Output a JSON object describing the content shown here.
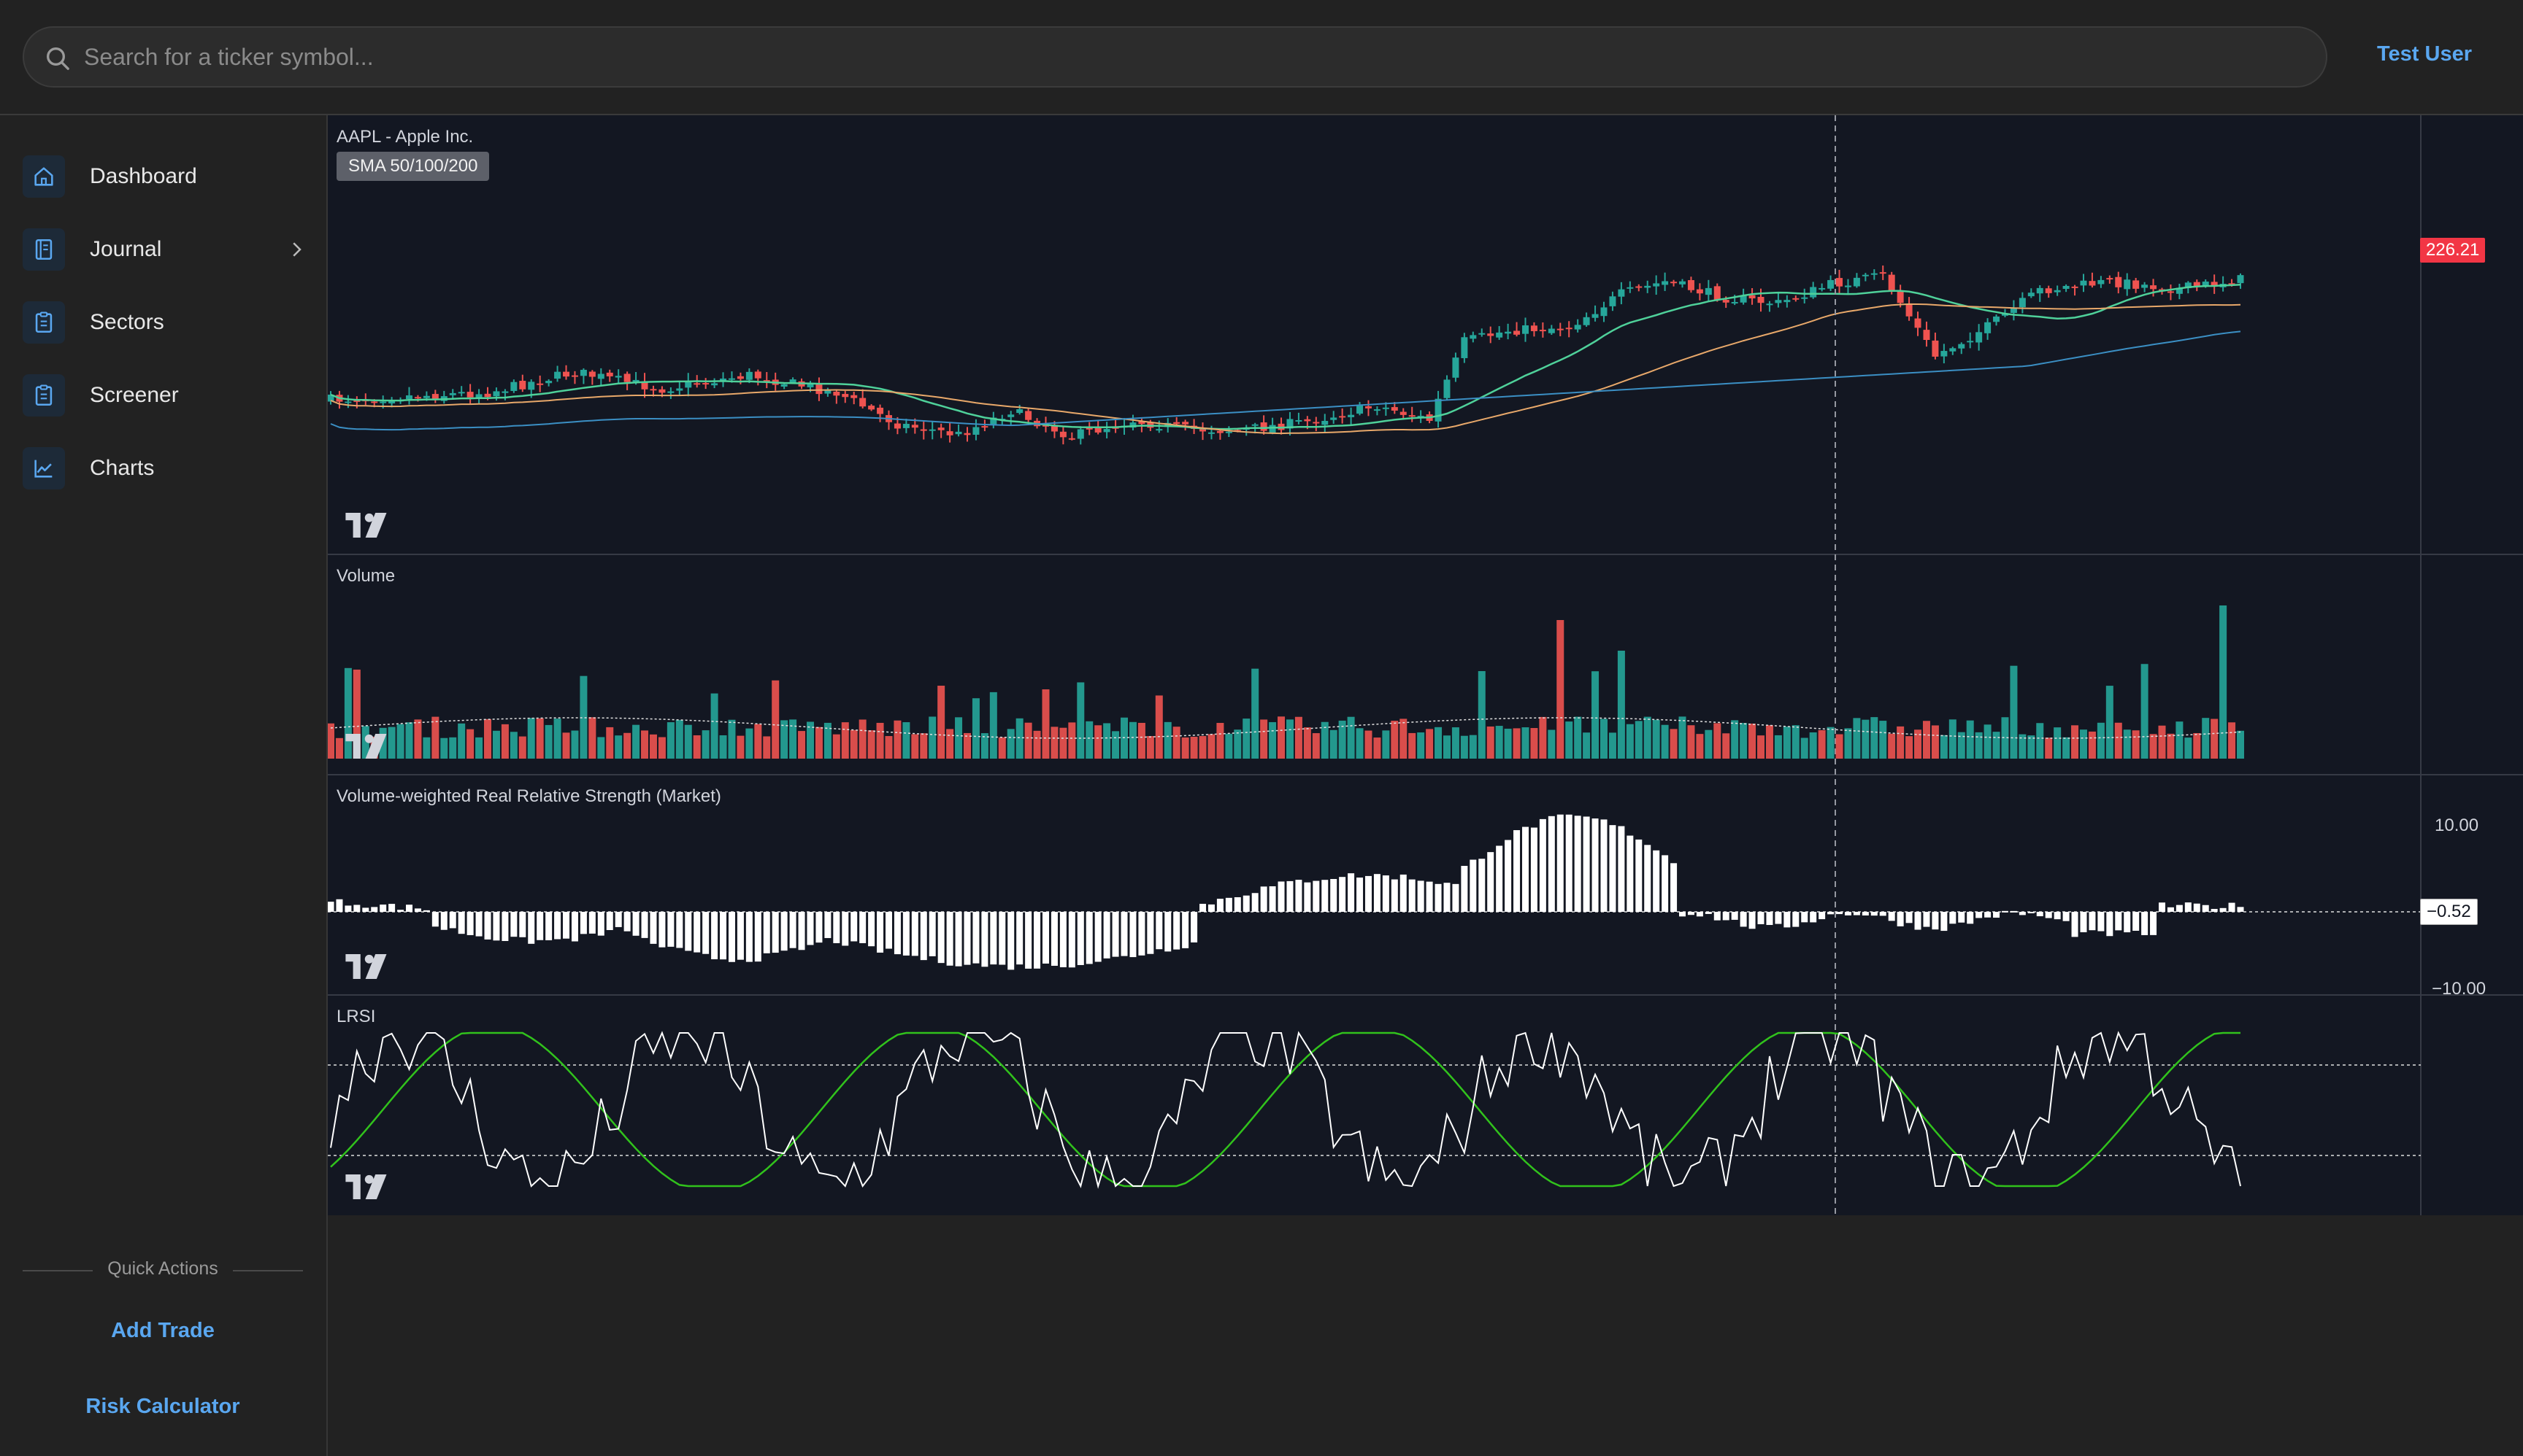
{
  "header": {
    "search_placeholder": "Search for a ticker symbol...",
    "user_name": "Test User"
  },
  "sidebar": {
    "items": [
      {
        "label": "Dashboard",
        "icon": "home-icon"
      },
      {
        "label": "Journal",
        "icon": "journal-icon",
        "has_submenu": true
      },
      {
        "label": "Sectors",
        "icon": "clipboard-icon"
      },
      {
        "label": "Screener",
        "icon": "clipboard-icon"
      },
      {
        "label": "Charts",
        "icon": "chart-line-icon"
      }
    ],
    "quick_actions": {
      "title": "Quick Actions",
      "add_trade": "Add Trade",
      "risk_calculator": "Risk Calculator"
    }
  },
  "chart": {
    "symbol_title": "AAPL - Apple Inc.",
    "indicator_badge": "SMA 50/100/200",
    "last_price": "226.21",
    "volume_title": "Volume",
    "vrrs_title": "Volume-weighted Real Relative Strength (Market)",
    "vrrs_axis_top": "10.00",
    "vrrs_axis_bottom": "−10.00",
    "vrrs_value": "−0.52",
    "lrsi_title": "LRSI",
    "colors": {
      "up": "#26a69a",
      "down": "#ef5350",
      "sma50": "#4fd19a",
      "sma100": "#e8a86a",
      "sma200": "#3b8fc4",
      "lrsi_main": "#ffffff",
      "lrsi_signal": "#31c21c",
      "background": "#131722",
      "accent": "#5aa7f0"
    }
  },
  "chart_data": {
    "type": "candlestick",
    "symbol": "AAPL",
    "bars": 220,
    "last_close": 226.21,
    "indicators": [
      "SMA 50",
      "SMA 100",
      "SMA 200",
      "Volume",
      "Volume-weighted Real Relative Strength (Market)",
      "LRSI"
    ],
    "vrrs_ylim": [
      -10,
      10
    ],
    "vrrs_last": -0.52
  }
}
